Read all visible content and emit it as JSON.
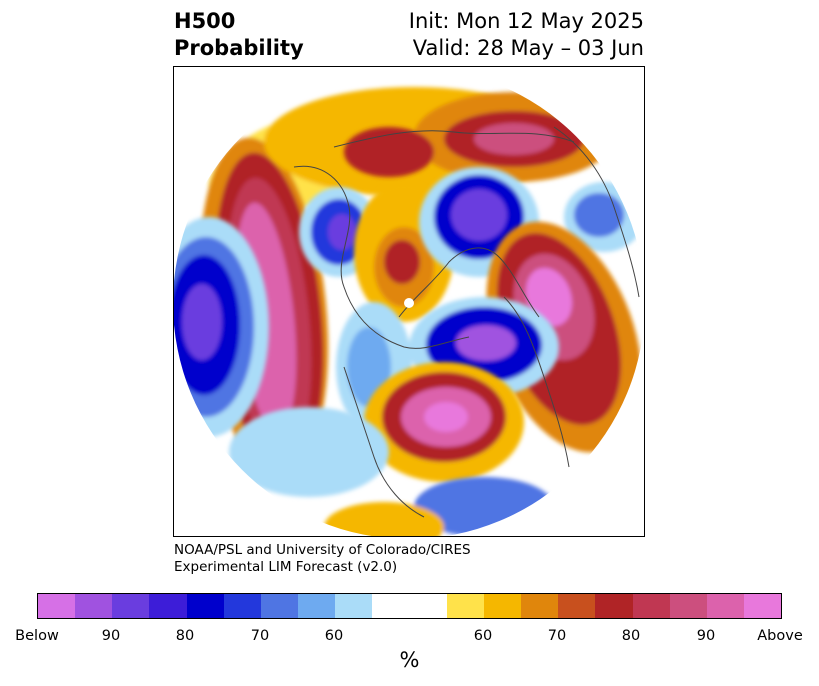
{
  "header": {
    "title_line1": "H500",
    "title_line2": "Probability",
    "init_text": "Init: Mon 12 May 2025",
    "valid_text": "Valid: 28 May – 03 Jun"
  },
  "credit": {
    "line1": "NOAA/PSL and University of Colorado/CIRES",
    "line2": "Experimental LIM Forecast (v2.0)"
  },
  "colorbar": {
    "unit_label": "%",
    "tick_labels": [
      "Below",
      "90",
      "80",
      "70",
      "60",
      "60",
      "70",
      "80",
      "90",
      "Above"
    ],
    "colors": [
      "#d670e6",
      "#a052e0",
      "#6a3ddf",
      "#3d1dd8",
      "#0000cc",
      "#2338dc",
      "#4f75e3",
      "#6eaaf0",
      "#aadcf8",
      "#ffffff",
      "#ffffff",
      "#ffe24a",
      "#f5b700",
      "#e0860c",
      "#c8501e",
      "#b02426",
      "#c03752",
      "#cc4f7e",
      "#dc62ac",
      "#e878dc"
    ]
  },
  "map": {
    "projection": "north-polar-stereographic",
    "features": [
      {
        "name": "pacific-above-ridge",
        "category": "Above"
      },
      {
        "name": "gulf-of-alaska-below",
        "category": "Below"
      },
      {
        "name": "western-canada-below",
        "category": "Below"
      },
      {
        "name": "east-asia-above",
        "category": "Above"
      },
      {
        "name": "arctic-below",
        "category": "Below"
      },
      {
        "name": "europe-above",
        "category": "Above"
      },
      {
        "name": "north-america-above",
        "category": "Above"
      },
      {
        "name": "atlantic-below",
        "category": "Below"
      }
    ]
  }
}
